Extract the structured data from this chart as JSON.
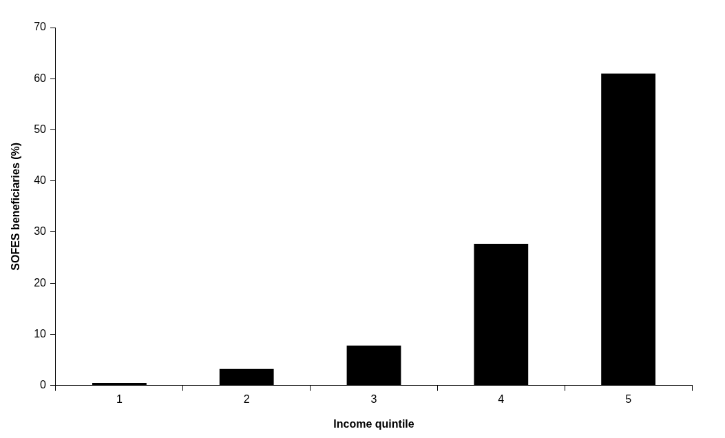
{
  "chart_data": {
    "type": "bar",
    "xlabel": "Income quintile",
    "ylabel": "SOFES beneficiaries (%)",
    "categories": [
      "1",
      "2",
      "3",
      "4",
      "5"
    ],
    "values": [
      0.5,
      3.2,
      7.8,
      27.7,
      61
    ],
    "color": "#000000",
    "ylim": [
      0,
      70
    ],
    "yticks": [
      0,
      10,
      20,
      30,
      40,
      50,
      60,
      70
    ],
    "grid": false,
    "legend": false
  }
}
